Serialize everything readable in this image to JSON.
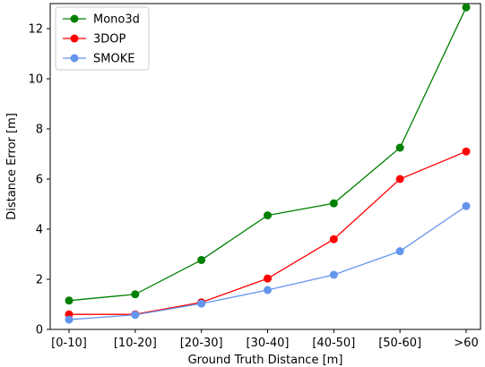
{
  "chart_data": {
    "type": "line",
    "title": "",
    "xlabel": "Ground Truth Distance [m]",
    "ylabel": "Distance Error [m]",
    "categories": [
      "[0-10]",
      "[10-20]",
      "[20-30]",
      "[30-40]",
      "[40-50]",
      "[50-60]",
      ">60"
    ],
    "ylim": [
      0,
      13
    ],
    "yticks": [
      0,
      2,
      4,
      6,
      8,
      10,
      12
    ],
    "grid": false,
    "legend_position": "top-left",
    "series": [
      {
        "name": "Mono3d",
        "color": "#008000",
        "values": [
          1.15,
          1.4,
          2.77,
          4.55,
          5.03,
          7.25,
          12.85
        ]
      },
      {
        "name": "3DOP",
        "color": "#ff0000",
        "values": [
          0.6,
          0.6,
          1.08,
          2.03,
          3.6,
          6.0,
          7.1
        ]
      },
      {
        "name": "SMOKE",
        "color": "#6495ed",
        "values": [
          0.39,
          0.58,
          1.03,
          1.57,
          2.18,
          3.12,
          4.92
        ]
      }
    ]
  }
}
